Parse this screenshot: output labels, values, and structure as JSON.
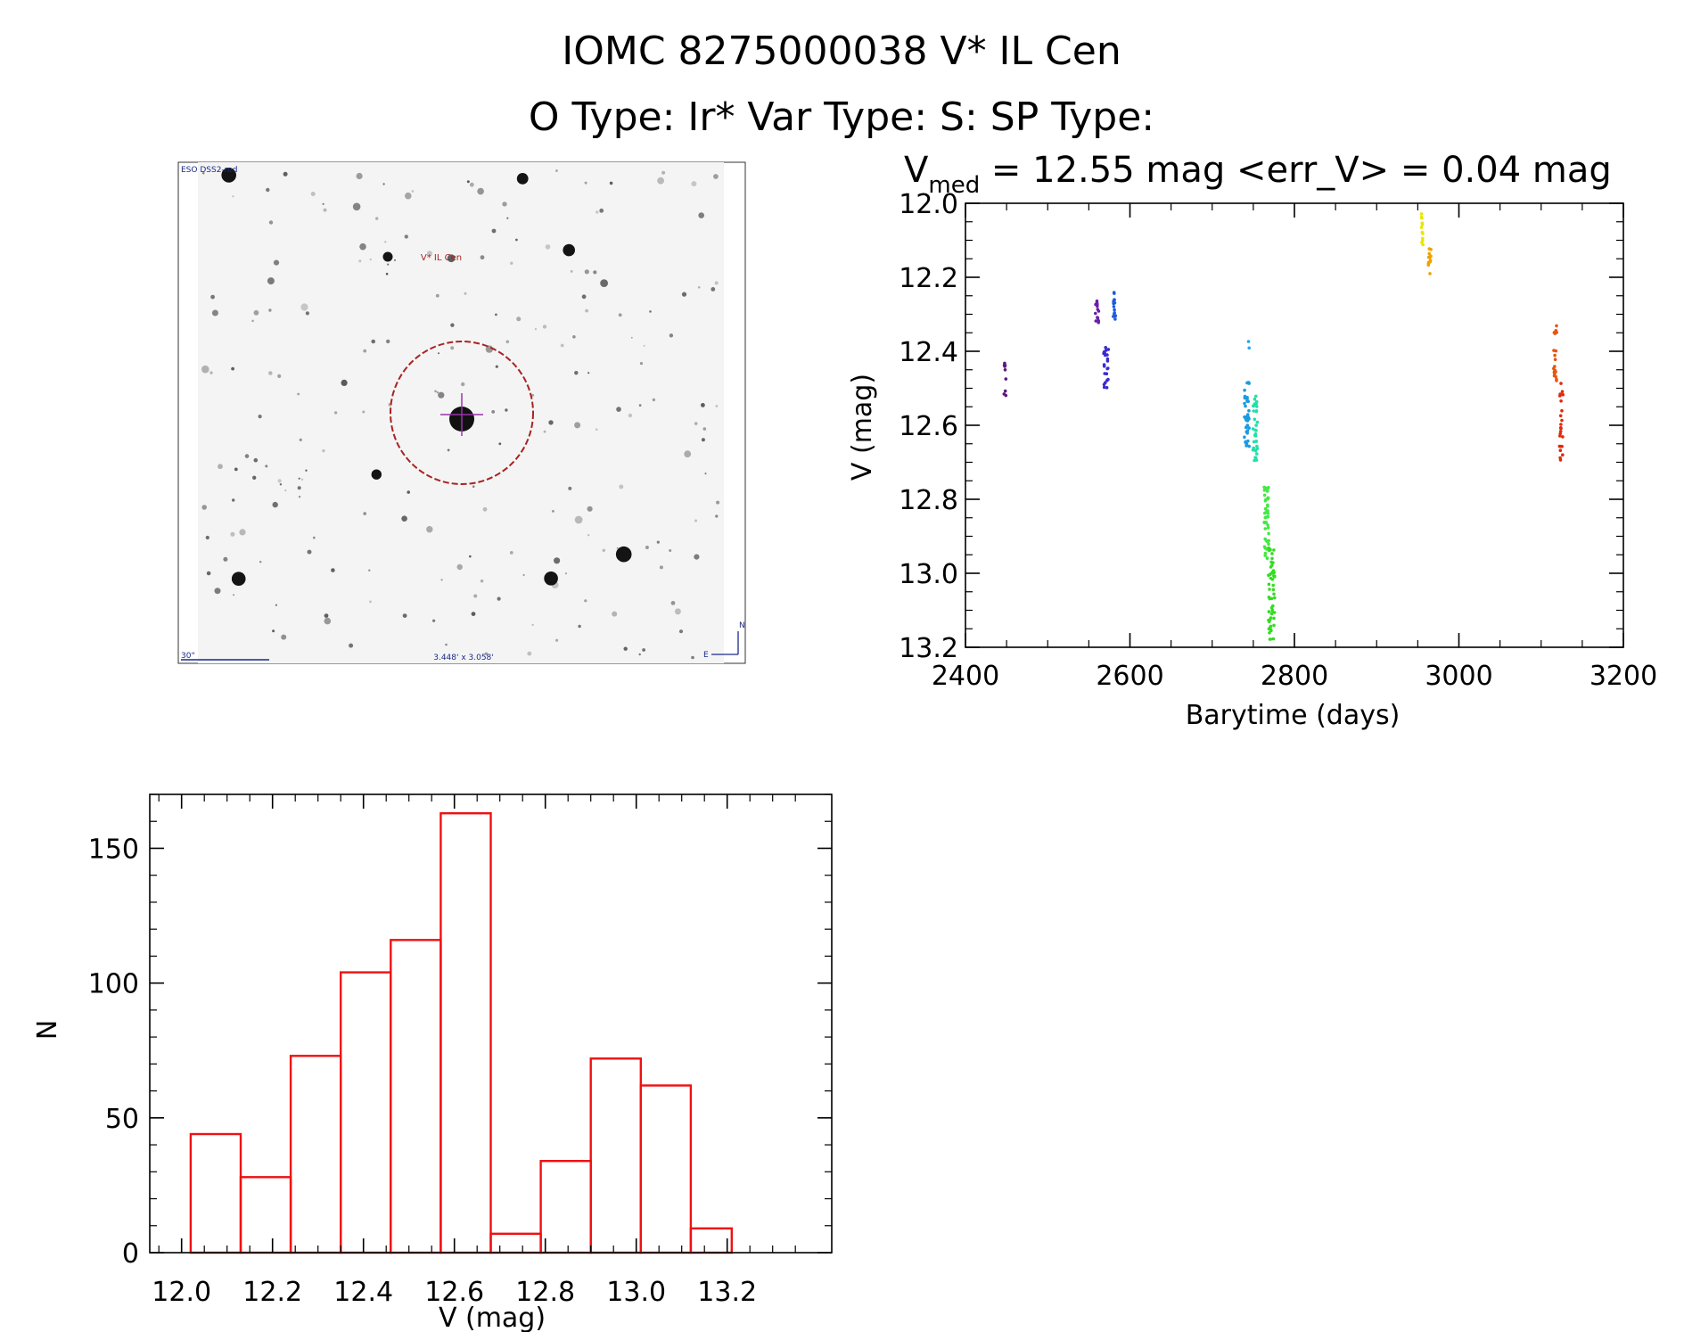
{
  "header": {
    "title_line1": "IOMC 8275000038    V* IL Cen",
    "title_line2": "O Type: Ir*  Var Type: S:  SP Type:"
  },
  "finder": {
    "survey_label": "ESO DSS2-red",
    "target_label": "V* IL Cen",
    "scale_label": "30\"",
    "fov_label": "3.448' x 3.058'",
    "north_label": "N",
    "east_label": "E",
    "colors": {
      "marker": "#aa2222",
      "label_blue": "#1a2a8a",
      "cross": "#9933aa"
    }
  },
  "chart_data": [
    {
      "id": "lightcurve",
      "type": "scatter",
      "title_var": "V",
      "title_sub": "med",
      "title_rest": " = 12.55 mag <err_V> = 0.04 mag",
      "xlabel": "Barytime (days)",
      "ylabel": "V (mag)",
      "xlim": [
        2400,
        3200
      ],
      "ylim": [
        12.0,
        13.2
      ],
      "y_inverted": true,
      "x_ticks": [
        "2400",
        "2600",
        "2800",
        "3000",
        "3200"
      ],
      "y_ticks": [
        "12.0",
        "12.2",
        "12.4",
        "12.6",
        "12.8",
        "13.0",
        "13.2"
      ],
      "grid": false,
      "clusters": [
        {
          "x": 2448,
          "x_spread": 1.5,
          "y_min": 12.43,
          "y_max": 12.52,
          "n": 9,
          "color": "#5b1a82"
        },
        {
          "x": 2560,
          "x_spread": 2,
          "y_min": 12.26,
          "y_max": 12.33,
          "n": 14,
          "color": "#6a1fa8"
        },
        {
          "x": 2571,
          "x_spread": 3,
          "y_min": 12.37,
          "y_max": 12.5,
          "n": 22,
          "color": "#3a2ad0"
        },
        {
          "x": 2581,
          "x_spread": 1.5,
          "y_min": 12.24,
          "y_max": 12.32,
          "n": 14,
          "color": "#1e5ce0"
        },
        {
          "x": 2742,
          "x_spread": 3,
          "y_min": 12.48,
          "y_max": 12.66,
          "n": 40,
          "color": "#1d9be0"
        },
        {
          "x": 2745,
          "x_spread": 1,
          "y_min": 12.36,
          "y_max": 12.4,
          "n": 2,
          "color": "#22aaee"
        },
        {
          "x": 2752,
          "x_spread": 3,
          "y_min": 12.52,
          "y_max": 12.7,
          "n": 35,
          "color": "#22e0a8"
        },
        {
          "x": 2766,
          "x_spread": 3,
          "y_min": 12.76,
          "y_max": 12.96,
          "n": 45,
          "color": "#44e844"
        },
        {
          "x": 2772,
          "x_spread": 4,
          "y_min": 12.92,
          "y_max": 13.18,
          "n": 55,
          "color": "#33dd22"
        },
        {
          "x": 2955,
          "x_spread": 1.5,
          "y_min": 12.02,
          "y_max": 12.12,
          "n": 12,
          "color": "#e6e600"
        },
        {
          "x": 2964,
          "x_spread": 2,
          "y_min": 12.11,
          "y_max": 12.2,
          "n": 14,
          "color": "#f0a000"
        },
        {
          "x": 3117,
          "x_spread": 2,
          "y_min": 12.33,
          "y_max": 12.48,
          "n": 22,
          "color": "#e8550e"
        },
        {
          "x": 3124,
          "x_spread": 2.5,
          "y_min": 12.48,
          "y_max": 12.72,
          "n": 24,
          "color": "#e02a0a"
        }
      ]
    },
    {
      "id": "histogram",
      "type": "bar",
      "xlabel": "V (mag)",
      "ylabel": "N",
      "xlim": [
        11.93,
        13.43
      ],
      "ylim": [
        0,
        170
      ],
      "x_ticks": [
        "12.0",
        "12.2",
        "12.4",
        "12.6",
        "12.8",
        "13.0",
        "13.2"
      ],
      "y_ticks": [
        "0",
        "50",
        "100",
        "150"
      ],
      "bin_edges": [
        12.02,
        12.13,
        12.24,
        12.35,
        12.46,
        12.57,
        12.68,
        12.79,
        12.9,
        13.01,
        13.12,
        13.21
      ],
      "values": [
        44,
        28,
        73,
        104,
        116,
        163,
        7,
        34,
        72,
        62,
        9
      ],
      "bar_color": "#ee1111"
    }
  ]
}
